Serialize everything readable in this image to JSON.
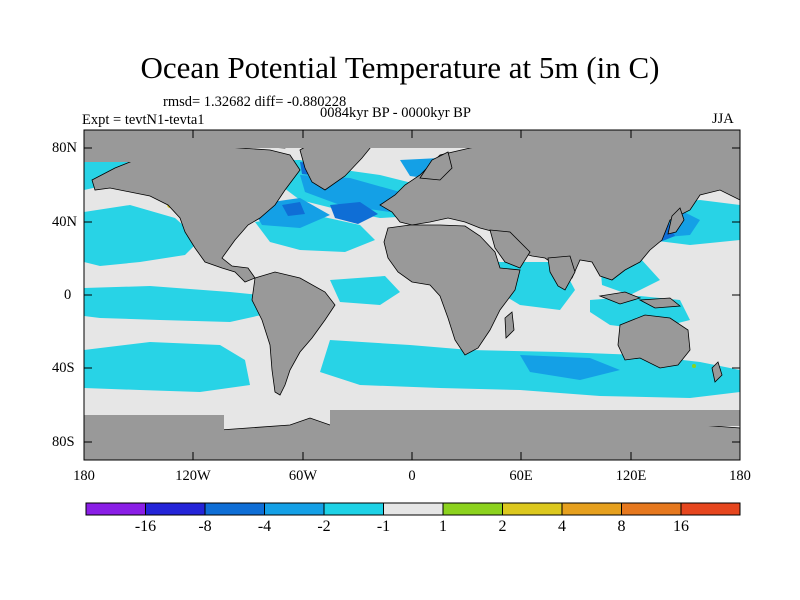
{
  "title": "Ocean Potential Temperature at 5m (in C)",
  "stats": "rmsd= 1.32682 diff= -0.880228",
  "period": "0084kyr BP - 0000kyr BP",
  "experiment": "Expt = tevtN1-tevta1",
  "season": "JJA",
  "lat_labels": [
    "80N",
    "40N",
    "0",
    "40S",
    "80S"
  ],
  "lon_labels": [
    "180",
    "120W",
    "60W",
    "0",
    "60E",
    "120E",
    "180"
  ],
  "colorbar": {
    "labels": [
      "-16",
      "-8",
      "-4",
      "-2",
      "-1",
      "1",
      "2",
      "4",
      "8",
      "16"
    ],
    "colors": [
      "#8a1ee6",
      "#2424d8",
      "#0f6ed6",
      "#14a0e6",
      "#1ed2e6",
      "#e6e6e6",
      "#8cd21e",
      "#dcc81e",
      "#e6a01e",
      "#e6781e",
      "#e6461e"
    ]
  },
  "colors": {
    "land": "#999999",
    "neutral": "#e6e6e6",
    "light_cyan": "#1ed2e6",
    "mid_blue": "#14a0e6",
    "deep_blue": "#0f6ed6"
  }
}
